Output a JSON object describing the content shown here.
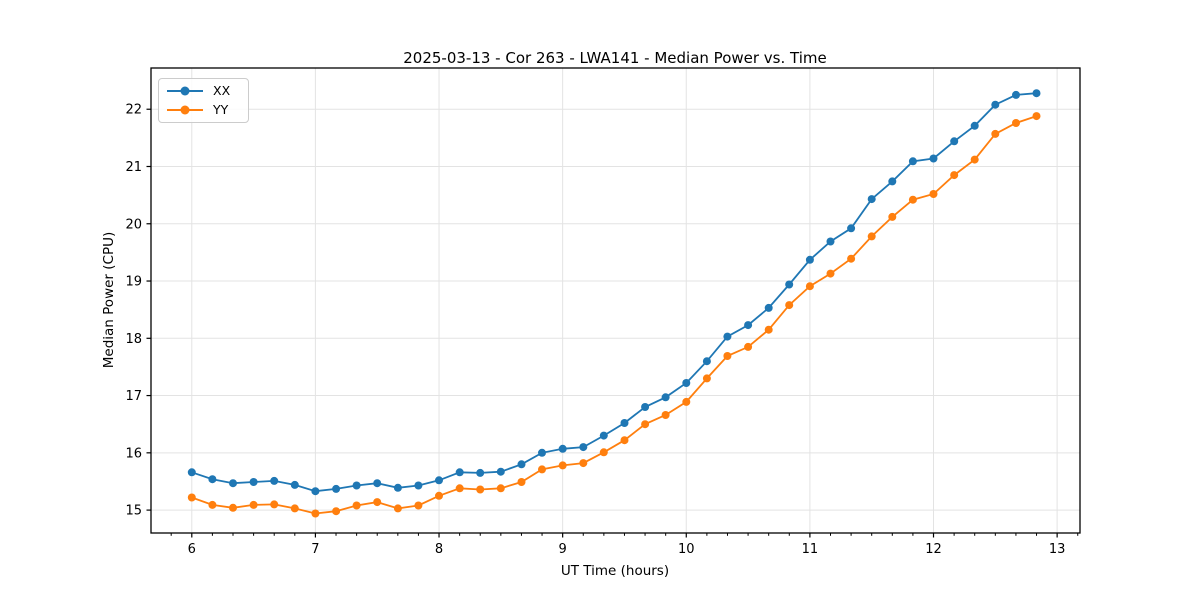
{
  "figure": {
    "background": "#ffffff",
    "frame_color": "#000000",
    "grid_color": "#e3e3e3"
  },
  "chart_data": {
    "type": "line",
    "title": "2025-03-13 - Cor 263 - LWA141 - Median Power vs. Time",
    "xlabel": "UT Time (hours)",
    "ylabel": "Median Power (CPU)",
    "xlim": [
      5.67,
      13.185
    ],
    "ylim": [
      14.6,
      22.72
    ],
    "xticks": [
      6,
      7,
      8,
      9,
      10,
      11,
      12,
      13
    ],
    "yticks": [
      15,
      16,
      17,
      18,
      19,
      20,
      21,
      22
    ],
    "grid": true,
    "legend_position": "upper left",
    "marker": "circle",
    "x": [
      6.0,
      6.167,
      6.333,
      6.5,
      6.667,
      6.833,
      7.0,
      7.167,
      7.333,
      7.5,
      7.667,
      7.833,
      8.0,
      8.167,
      8.333,
      8.5,
      8.667,
      8.833,
      9.0,
      9.167,
      9.333,
      9.5,
      9.667,
      9.833,
      10.0,
      10.167,
      10.333,
      10.5,
      10.667,
      10.833,
      11.0,
      11.167,
      11.333,
      11.5,
      11.667,
      11.833,
      12.0,
      12.167,
      12.333,
      12.5,
      12.667,
      12.833
    ],
    "series": [
      {
        "name": "XX",
        "color": "#1f77b4",
        "values": [
          15.66,
          15.54,
          15.47,
          15.49,
          15.51,
          15.44,
          15.33,
          15.37,
          15.43,
          15.47,
          15.39,
          15.43,
          15.52,
          15.66,
          15.65,
          15.67,
          15.8,
          16.0,
          16.07,
          16.1,
          16.3,
          16.52,
          16.8,
          16.97,
          17.22,
          17.6,
          18.03,
          18.23,
          18.53,
          18.94,
          19.37,
          19.69,
          19.92,
          20.43,
          20.74,
          21.09,
          21.14,
          21.44,
          21.71,
          22.08,
          22.25,
          22.28
        ]
      },
      {
        "name": "YY",
        "color": "#ff7f0e",
        "values": [
          15.22,
          15.09,
          15.04,
          15.09,
          15.1,
          15.03,
          14.94,
          14.98,
          15.08,
          15.14,
          15.03,
          15.08,
          15.25,
          15.38,
          15.36,
          15.38,
          15.49,
          15.71,
          15.78,
          15.82,
          16.01,
          16.22,
          16.5,
          16.66,
          16.89,
          17.3,
          17.69,
          17.85,
          18.15,
          18.58,
          18.91,
          19.13,
          19.39,
          19.78,
          20.12,
          20.42,
          20.52,
          20.85,
          21.12,
          21.57,
          21.76,
          21.88
        ]
      }
    ]
  }
}
